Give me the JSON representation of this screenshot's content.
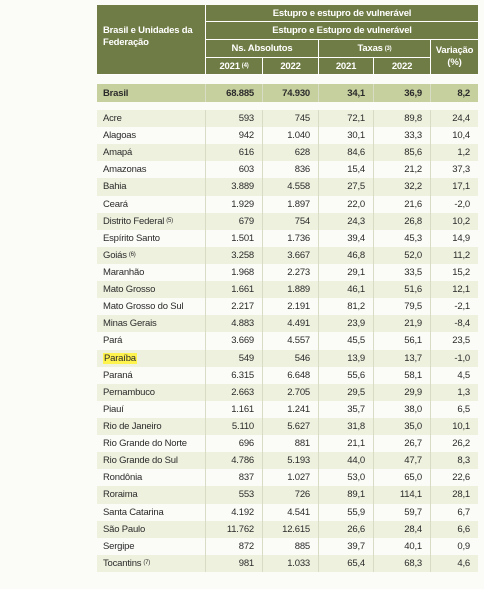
{
  "table": {
    "header": {
      "label": "Brasil e Unidades da Federação",
      "group1": "Estupro e estupro de vulnerável",
      "group2": "Estupro e Estupro de vulnerável",
      "abs": "Ns. Absolutos",
      "taxas": {
        "text": "Taxas",
        "note": "(3)"
      },
      "variacao": "Variação (%)",
      "years": [
        {
          "text": "2021",
          "note": "(4)"
        },
        {
          "text": "2022"
        },
        {
          "text": "2021"
        },
        {
          "text": "2022"
        }
      ]
    },
    "total": {
      "name": "Brasil",
      "values": [
        "68.885",
        "74.930",
        "34,1",
        "36,9",
        "8,2"
      ]
    },
    "rows": [
      {
        "name": "Acre",
        "values": [
          "593",
          "745",
          "72,1",
          "89,8",
          "24,4"
        ]
      },
      {
        "name": "Alagoas",
        "values": [
          "942",
          "1.040",
          "30,1",
          "33,3",
          "10,4"
        ]
      },
      {
        "name": "Amapá",
        "values": [
          "616",
          "628",
          "84,6",
          "85,6",
          "1,2"
        ]
      },
      {
        "name": "Amazonas",
        "values": [
          "603",
          "836",
          "15,4",
          "21,2",
          "37,3"
        ]
      },
      {
        "name": "Bahia",
        "values": [
          "3.889",
          "4.558",
          "27,5",
          "32,2",
          "17,1"
        ]
      },
      {
        "name": "Ceará",
        "values": [
          "1.929",
          "1.897",
          "22,0",
          "21,6",
          "-2,0"
        ]
      },
      {
        "name": "Distrito Federal",
        "note": "(5)",
        "values": [
          "679",
          "754",
          "24,3",
          "26,8",
          "10,2"
        ]
      },
      {
        "name": "Espírito Santo",
        "values": [
          "1.501",
          "1.736",
          "39,4",
          "45,3",
          "14,9"
        ]
      },
      {
        "name": "Goiás",
        "note": "(6)",
        "values": [
          "3.258",
          "3.667",
          "46,8",
          "52,0",
          "11,2"
        ]
      },
      {
        "name": "Maranhão",
        "values": [
          "1.968",
          "2.273",
          "29,1",
          "33,5",
          "15,2"
        ]
      },
      {
        "name": "Mato Grosso",
        "values": [
          "1.661",
          "1.889",
          "46,1",
          "51,6",
          "12,1"
        ]
      },
      {
        "name": "Mato Grosso do Sul",
        "values": [
          "2.217",
          "2.191",
          "81,2",
          "79,5",
          "-2,1"
        ]
      },
      {
        "name": "Minas Gerais",
        "values": [
          "4.883",
          "4.491",
          "23,9",
          "21,9",
          "-8,4"
        ]
      },
      {
        "name": "Pará",
        "values": [
          "3.669",
          "4.557",
          "45,5",
          "56,1",
          "23,5"
        ]
      },
      {
        "name": "Paraíba",
        "values": [
          "549",
          "546",
          "13,9",
          "13,7",
          "-1,0"
        ]
      },
      {
        "name": "Paraná",
        "values": [
          "6.315",
          "6.648",
          "55,6",
          "58,1",
          "4,5"
        ]
      },
      {
        "name": "Pernambuco",
        "values": [
          "2.663",
          "2.705",
          "29,5",
          "29,9",
          "1,3"
        ]
      },
      {
        "name": "Piauí",
        "values": [
          "1.161",
          "1.241",
          "35,7",
          "38,0",
          "6,5"
        ]
      },
      {
        "name": "Rio de Janeiro",
        "values": [
          "5.110",
          "5.627",
          "31,8",
          "35,0",
          "10,1"
        ]
      },
      {
        "name": "Rio Grande do Norte",
        "values": [
          "696",
          "881",
          "21,1",
          "26,7",
          "26,2"
        ]
      },
      {
        "name": "Rio Grande do Sul",
        "values": [
          "4.786",
          "5.193",
          "44,0",
          "47,7",
          "8,3"
        ]
      },
      {
        "name": "Rondônia",
        "values": [
          "837",
          "1.027",
          "53,0",
          "65,0",
          "22,6"
        ]
      },
      {
        "name": "Roraima",
        "values": [
          "553",
          "726",
          "89,1",
          "114,1",
          "28,1"
        ]
      },
      {
        "name": "Santa Catarina",
        "values": [
          "4.192",
          "4.541",
          "55,9",
          "59,7",
          "6,7"
        ]
      },
      {
        "name": "São Paulo",
        "values": [
          "11.762",
          "12.615",
          "26,6",
          "28,4",
          "6,6"
        ]
      },
      {
        "name": "Sergipe",
        "values": [
          "872",
          "885",
          "39,7",
          "40,1",
          "0,9"
        ]
      },
      {
        "name": "Tocantins",
        "note": "(7)",
        "values": [
          "981",
          "1.033",
          "65,4",
          "68,3",
          "4,6"
        ]
      }
    ]
  }
}
